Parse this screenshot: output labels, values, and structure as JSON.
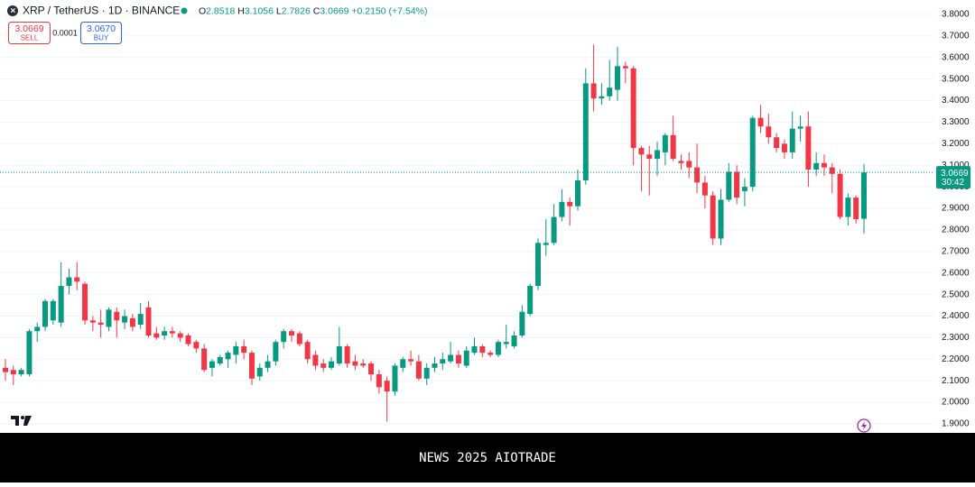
{
  "header": {
    "symbol": "XRP / TetherUS · 1D · BINANCE",
    "open_label": "O",
    "open": "2.8518",
    "high_label": "H",
    "high": "3.1056",
    "low_label": "L",
    "low": "2.7826",
    "close_label": "C",
    "close": "3.0669",
    "change": "+0.2150 (+7.54%)"
  },
  "order_panel": {
    "sell_price": "3.0669",
    "sell_label": "SELL",
    "spread": "0.0001",
    "buy_price": "3.0670",
    "buy_label": "BUY"
  },
  "chart_data": {
    "type": "candlestick",
    "up_color": "#089981",
    "down_color": "#f23645",
    "grid": true,
    "ylim": [
      1.858,
      3.867
    ],
    "yticks": [
      {
        "value": 1.9,
        "label": "1.9000"
      },
      {
        "value": 2.0,
        "label": "2.0000"
      },
      {
        "value": 2.1,
        "label": "2.1000"
      },
      {
        "value": 2.2,
        "label": "2.2000"
      },
      {
        "value": 2.3,
        "label": "2.3000"
      },
      {
        "value": 2.4,
        "label": "2.4000"
      },
      {
        "value": 2.5,
        "label": "2.5000"
      },
      {
        "value": 2.6,
        "label": "2.6000"
      },
      {
        "value": 2.7,
        "label": "2.7000"
      },
      {
        "value": 2.8,
        "label": "2.8000"
      },
      {
        "value": 2.9,
        "label": "2.9000"
      },
      {
        "value": 3.0,
        "label": "3.0000"
      },
      {
        "value": 3.1,
        "label": "3.1000"
      },
      {
        "value": 3.2,
        "label": "3.2000"
      },
      {
        "value": 3.3,
        "label": "3.3000"
      },
      {
        "value": 3.4,
        "label": "3.4000"
      },
      {
        "value": 3.5,
        "label": "3.5000"
      },
      {
        "value": 3.6,
        "label": "3.6000"
      },
      {
        "value": 3.7,
        "label": "3.7000"
      },
      {
        "value": 3.8,
        "label": "3.8000"
      }
    ],
    "open": [
      2.16,
      2.15,
      2.13,
      2.13,
      2.33,
      2.35,
      2.38,
      2.37,
      2.54,
      2.58,
      2.55,
      2.38,
      2.37,
      2.35,
      2.42,
      2.37,
      2.39,
      2.36,
      2.44,
      2.32,
      2.31,
      2.33,
      2.32,
      2.31,
      2.28,
      2.25,
      2.16,
      2.18,
      2.2,
      2.22,
      2.26,
      2.23,
      2.12,
      2.16,
      2.19,
      2.28,
      2.33,
      2.32,
      2.28,
      2.22,
      2.18,
      2.16,
      2.18,
      2.26,
      2.19,
      2.18,
      2.18,
      2.13,
      2.1,
      2.05,
      2.16,
      2.2,
      2.19,
      2.11,
      2.16,
      2.18,
      2.19,
      2.22,
      2.17,
      2.23,
      2.26,
      2.23,
      2.22,
      2.27,
      2.26,
      2.31,
      2.41,
      2.54,
      2.73,
      2.74,
      2.86,
      2.93,
      2.91,
      3.03,
      3.48,
      3.41,
      3.42,
      3.45,
      3.56,
      3.55,
      3.18,
      3.15,
      3.13,
      3.16,
      3.24,
      3.12,
      3.12,
      3.09,
      3.02,
      2.96,
      2.76,
      2.94,
      3.07,
      2.98,
      3.0,
      3.32,
      3.28,
      3.23,
      3.2,
      3.16,
      3.27,
      3.28,
      3.08,
      3.11,
      3.09,
      3.06,
      2.86,
      2.95,
      2.8518
    ],
    "high": [
      2.2,
      2.17,
      2.16,
      2.34,
      2.37,
      2.48,
      2.48,
      2.65,
      2.62,
      2.65,
      2.56,
      2.4,
      2.43,
      2.44,
      2.44,
      2.43,
      2.41,
      2.46,
      2.47,
      2.35,
      2.35,
      2.35,
      2.33,
      2.32,
      2.29,
      2.27,
      2.2,
      2.22,
      2.24,
      2.28,
      2.29,
      2.24,
      2.18,
      2.22,
      2.29,
      2.34,
      2.34,
      2.33,
      2.29,
      2.24,
      2.2,
      2.21,
      2.35,
      2.27,
      2.22,
      2.2,
      2.19,
      2.15,
      2.12,
      2.18,
      2.21,
      2.24,
      2.22,
      2.18,
      2.21,
      2.23,
      2.28,
      2.24,
      2.26,
      2.3,
      2.27,
      2.24,
      2.29,
      2.36,
      2.33,
      2.45,
      2.55,
      2.76,
      2.85,
      2.92,
      2.99,
      2.95,
      3.08,
      3.55,
      3.66,
      3.48,
      3.59,
      3.65,
      3.58,
      3.56,
      3.19,
      3.19,
      3.21,
      3.25,
      3.33,
      3.15,
      3.16,
      3.2,
      3.05,
      2.98,
      2.99,
      3.11,
      3.1,
      3.04,
      3.33,
      3.38,
      3.34,
      3.25,
      3.22,
      3.35,
      3.33,
      3.35,
      3.16,
      3.15,
      3.11,
      3.08,
      2.97,
      2.96,
      3.1056
    ],
    "low": [
      2.1,
      2.08,
      2.12,
      2.12,
      2.28,
      2.33,
      2.36,
      2.35,
      2.5,
      2.52,
      2.36,
      2.33,
      2.3,
      2.33,
      2.3,
      2.34,
      2.33,
      2.34,
      2.3,
      2.29,
      2.29,
      2.3,
      2.28,
      2.26,
      2.23,
      2.14,
      2.12,
      2.17,
      2.16,
      2.18,
      2.2,
      2.08,
      2.1,
      2.14,
      2.17,
      2.25,
      2.28,
      2.26,
      2.18,
      2.15,
      2.14,
      2.15,
      2.17,
      2.16,
      2.15,
      2.16,
      2.1,
      2.04,
      1.91,
      2.03,
      2.14,
      2.17,
      2.1,
      2.08,
      2.14,
      2.15,
      2.18,
      2.16,
      2.16,
      2.22,
      2.21,
      2.21,
      2.21,
      2.25,
      2.25,
      2.3,
      2.4,
      2.52,
      2.68,
      2.73,
      2.84,
      2.82,
      2.89,
      3.01,
      3.35,
      3.38,
      3.4,
      3.4,
      3.48,
      3.1,
      2.98,
      2.96,
      3.05,
      3.1,
      3.12,
      3.08,
      3.04,
      2.97,
      2.9,
      2.73,
      2.73,
      2.93,
      2.92,
      2.91,
      2.98,
      3.25,
      3.2,
      3.16,
      3.13,
      3.13,
      3.21,
      3.0,
      3.05,
      3.05,
      2.97,
      2.85,
      2.82,
      2.83,
      2.7826
    ],
    "close": [
      2.14,
      2.13,
      2.15,
      2.33,
      2.35,
      2.47,
      2.47,
      2.54,
      2.58,
      2.56,
      2.38,
      2.37,
      2.36,
      2.43,
      2.38,
      2.4,
      2.35,
      2.41,
      2.31,
      2.3,
      2.33,
      2.32,
      2.3,
      2.27,
      2.25,
      2.15,
      2.19,
      2.21,
      2.23,
      2.26,
      2.23,
      2.11,
      2.16,
      2.19,
      2.28,
      2.33,
      2.31,
      2.27,
      2.2,
      2.17,
      2.16,
      2.19,
      2.26,
      2.18,
      2.17,
      2.17,
      2.13,
      2.07,
      2.05,
      2.17,
      2.2,
      2.19,
      2.11,
      2.16,
      2.18,
      2.2,
      2.22,
      2.18,
      2.24,
      2.26,
      2.23,
      2.22,
      2.28,
      2.28,
      2.31,
      2.42,
      2.54,
      2.74,
      2.74,
      2.86,
      2.93,
      2.91,
      3.03,
      3.48,
      3.41,
      3.42,
      3.46,
      3.56,
      3.55,
      3.18,
      3.15,
      3.13,
      3.17,
      3.24,
      3.13,
      3.11,
      3.09,
      3.02,
      2.96,
      2.76,
      2.94,
      3.07,
      2.95,
      3.0,
      3.32,
      3.28,
      3.23,
      3.18,
      3.16,
      3.27,
      3.28,
      3.08,
      3.11,
      3.09,
      3.06,
      2.86,
      2.95,
      2.85,
      3.0669
    ],
    "price_label": {
      "price": "3.0669",
      "countdown": "30:42"
    }
  },
  "footer": {
    "text": "NEWS 2025 AIOTRADE"
  }
}
